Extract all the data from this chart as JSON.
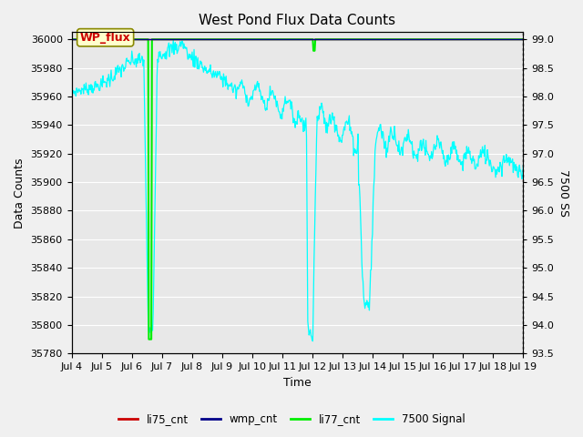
{
  "title": "West Pond Flux Data Counts",
  "xlabel": "Time",
  "ylabel_left": "Data Counts",
  "ylabel_right": "7500 SS",
  "ylim_left": [
    35780,
    36005
  ],
  "ylim_right": [
    93.5,
    99.1
  ],
  "yticks_left": [
    35780,
    35800,
    35820,
    35840,
    35860,
    35880,
    35900,
    35920,
    35940,
    35960,
    35980,
    36000
  ],
  "yticks_right": [
    93.5,
    94.0,
    94.5,
    95.0,
    95.5,
    96.0,
    96.5,
    97.0,
    97.5,
    98.0,
    98.5,
    99.0
  ],
  "xtick_labels": [
    "Jul 4",
    "Jul 5",
    "Jul 6",
    "Jul 7",
    "Jul 8",
    "Jul 9",
    "Jul 10",
    "Jul 11",
    "Jul 12",
    "Jul 13",
    "Jul 14",
    "Jul 15",
    "Jul 16",
    "Jul 17",
    "Jul 18",
    "Jul 19"
  ],
  "fig_bg_color": "#f0f0f0",
  "plot_bg_color": "#e8e8e8",
  "grid_color": "#ffffff",
  "li77_cnt_color": "#00ee00",
  "cyan_color": "#00ffff",
  "li75_cnt_color": "#cc0000",
  "wmp_cnt_color": "#000088",
  "ann_text": "WP_flux",
  "ann_facecolor": "#ffffcc",
  "ann_edgecolor": "#888800",
  "ann_textcolor": "#cc0000"
}
